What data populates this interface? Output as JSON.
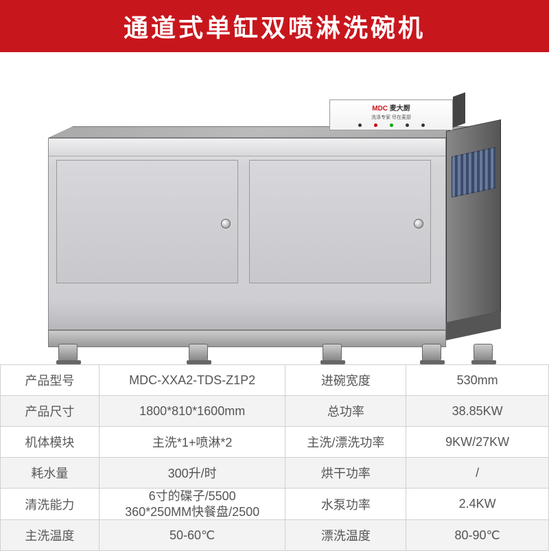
{
  "header": {
    "title": "通道式单缸双喷淋洗碗机"
  },
  "control_panel": {
    "brand": "麦大厨",
    "subtitle": "洗涤专家 尽在麦厨"
  },
  "specs": {
    "rows": [
      {
        "l1": "产品型号",
        "v1": "MDC-XXA2-TDS-Z1P2",
        "l2": "进碗宽度",
        "v2": "530mm"
      },
      {
        "l1": "产品尺寸",
        "v1": "1800*810*1600mm",
        "l2": "总功率",
        "v2": "38.85KW"
      },
      {
        "l1": "机体模块",
        "v1": "主洗*1+喷淋*2",
        "l2": "主洗/漂洗功率",
        "v2": "9KW/27KW"
      },
      {
        "l1": "耗水量",
        "v1": "300升/时",
        "l2": "烘干功率",
        "v2": "/"
      },
      {
        "l1": "清洗能力",
        "v1": "6寸的碟子/5500\n360*250MM快餐盘/2500",
        "l2": "水泵功率",
        "v2": "2.4KW"
      },
      {
        "l1": "主洗温度",
        "v1": "50-60℃",
        "l2": "漂洗温度",
        "v2": "80-90℃"
      }
    ]
  },
  "feet_positions": [
    25,
    215,
    410,
    555,
    630
  ]
}
